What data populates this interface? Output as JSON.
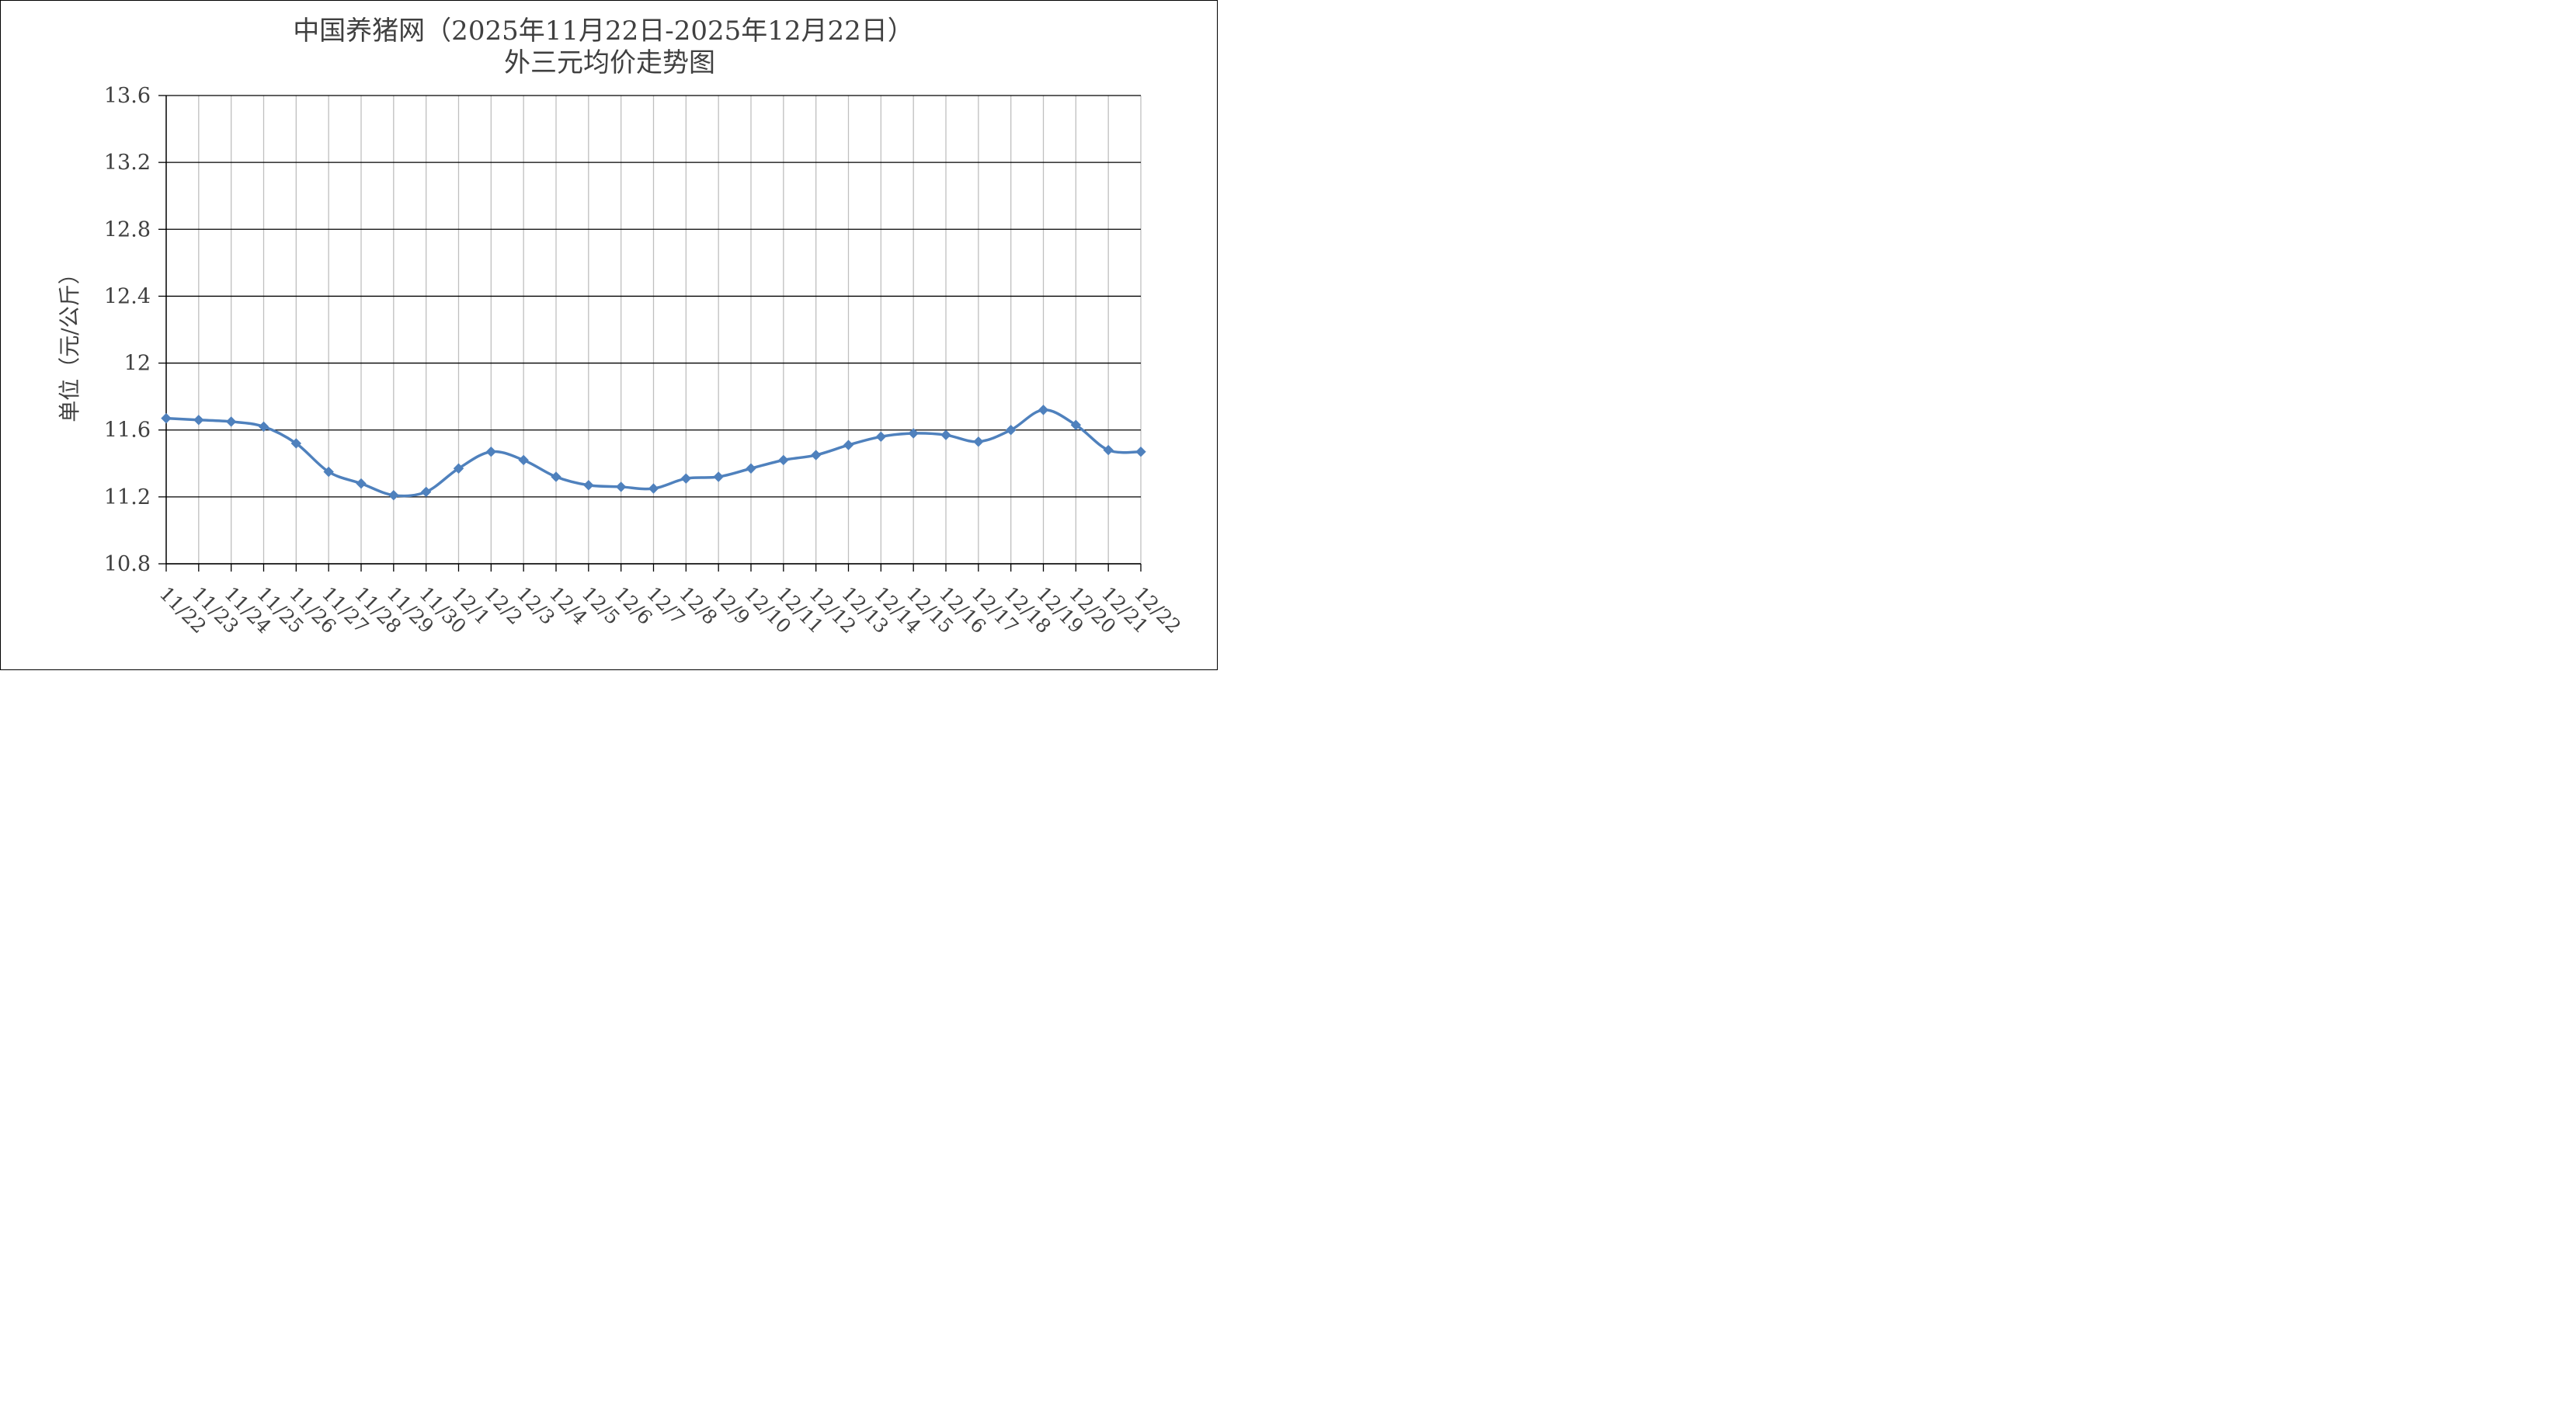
{
  "chart_data": {
    "type": "line",
    "title": "中国养猪网（2025年11月22日-2025年12月22日）",
    "subtitle": "外三元均价走势图",
    "xlabel": "",
    "ylabel": "单位（元/公斤）",
    "ylim": [
      10.8,
      13.6
    ],
    "yticks": [
      "10.8",
      "11.2",
      "11.6",
      "12",
      "12.4",
      "12.8",
      "13.2",
      "13.6"
    ],
    "grid": true,
    "legend": "none",
    "categories": [
      "11/22",
      "11/23",
      "11/24",
      "11/25",
      "11/26",
      "11/27",
      "11/28",
      "11/29",
      "11/30",
      "12/1",
      "12/2",
      "12/3",
      "12/4",
      "12/5",
      "12/6",
      "12/7",
      "12/8",
      "12/9",
      "12/10",
      "12/11",
      "12/12",
      "12/13",
      "12/14",
      "12/15",
      "12/16",
      "12/17",
      "12/18",
      "12/19",
      "12/20",
      "12/21",
      "12/22"
    ],
    "series": [
      {
        "color": "#4F81BD",
        "marker": "diamond",
        "values": [
          11.67,
          11.66,
          11.65,
          11.62,
          11.52,
          11.35,
          11.28,
          11.21,
          11.23,
          11.37,
          11.47,
          11.42,
          11.32,
          11.27,
          11.26,
          11.25,
          11.31,
          11.32,
          11.37,
          11.42,
          11.45,
          11.51,
          11.56,
          11.58,
          11.57,
          11.53,
          11.6,
          11.72,
          11.63,
          11.48,
          11.47
        ]
      }
    ]
  }
}
